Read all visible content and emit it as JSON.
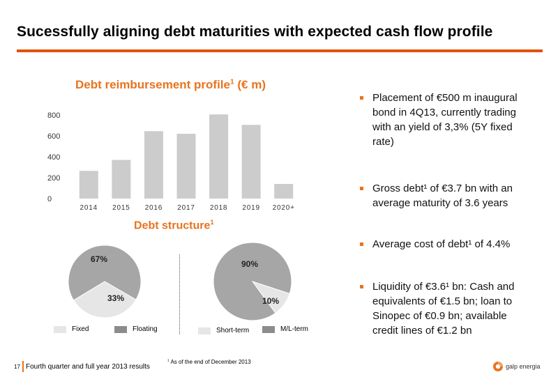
{
  "slide": {
    "title": "Sucessfully aligning debt maturities with expected cash flow profile",
    "page_number": "17",
    "footer_text": "Fourth quarter and full year 2013 results",
    "footnote_sup": "1",
    "footnote_text": "As of the end of December 2013",
    "logo_text": "galp energia"
  },
  "chart_title": {
    "text": "Debt reimbursement profile",
    "sup": "1",
    "suffix": " (€ m)"
  },
  "section_title": {
    "text": "Debt structure",
    "sup": "1"
  },
  "chart_data": [
    {
      "type": "bar",
      "title": "Debt reimbursement profile¹ (€ m)",
      "categories": [
        "2014",
        "2015",
        "2016",
        "2017",
        "2018",
        "2019",
        "2020+"
      ],
      "values": [
        265,
        370,
        645,
        620,
        805,
        705,
        140
      ],
      "ylim": [
        0,
        800
      ],
      "yticks": [
        0,
        200,
        400,
        600,
        800
      ],
      "grid": false,
      "color": "#cccccc"
    },
    {
      "type": "pie",
      "labels": [
        "Fixed",
        "Floating"
      ],
      "values": [
        33,
        67
      ],
      "value_labels": [
        "33%",
        "67%"
      ],
      "colors": [
        "#e6e6e6",
        "#a6a6a6"
      ]
    },
    {
      "type": "pie",
      "labels": [
        "Short-term",
        "M/L-term"
      ],
      "values": [
        10,
        90
      ],
      "value_labels": [
        "10%",
        "90%"
      ],
      "colors": [
        "#e6e6e6",
        "#a6a6a6"
      ]
    }
  ],
  "bullets": [
    {
      "lines": [
        "Placement of €500 m inaugural",
        "bond in 4Q13, currently trading",
        "with an yield of 3,3% (5Y fixed",
        "rate)"
      ]
    },
    {
      "lines": [
        "Gross debt¹ of €3.7 bn with an",
        "average maturity of 3.6 years"
      ]
    },
    {
      "lines": [
        "Average cost of debt¹ of 4.4%"
      ]
    },
    {
      "lines": [
        "Liquidity of €3.6¹ bn: Cash and",
        "equivalents of €1.5 bn; loan to",
        "Sinopec of €0.9 bn; available",
        "credit lines of €1.2 bn"
      ]
    }
  ],
  "colors": {
    "accent": "#e8731e",
    "rule": "#e35205",
    "bar": "#cccccc",
    "pie_light": "#e6e6e6",
    "pie_dark": "#a6a6a6"
  }
}
